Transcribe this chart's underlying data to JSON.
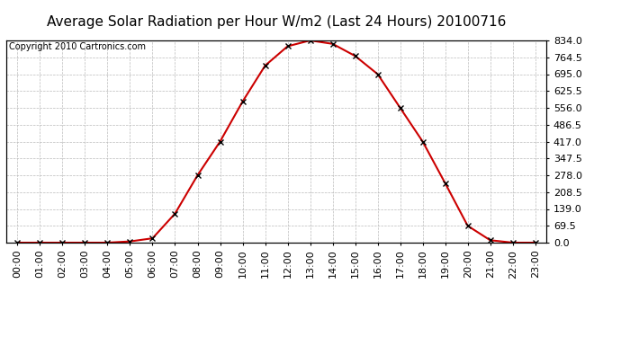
{
  "title": "Average Solar Radiation per Hour W/m2 (Last 24 Hours) 20100716",
  "copyright": "Copyright 2010 Cartronics.com",
  "hours": [
    "00:00",
    "01:00",
    "02:00",
    "03:00",
    "04:00",
    "05:00",
    "06:00",
    "07:00",
    "08:00",
    "09:00",
    "10:00",
    "11:00",
    "12:00",
    "13:00",
    "14:00",
    "15:00",
    "16:00",
    "17:00",
    "18:00",
    "19:00",
    "20:00",
    "21:00",
    "22:00",
    "23:00"
  ],
  "values": [
    0.0,
    0.0,
    0.0,
    0.0,
    0.0,
    5.0,
    18.0,
    120.0,
    278.0,
    417.0,
    582.0,
    730.0,
    810.0,
    834.0,
    820.0,
    770.0,
    695.0,
    556.0,
    417.0,
    245.0,
    69.5,
    10.0,
    0.0,
    0.0
  ],
  "line_color": "#cc0000",
  "marker": "x",
  "marker_color": "#000000",
  "bg_color": "#ffffff",
  "grid_color": "#bbbbbb",
  "yticks": [
    0.0,
    69.5,
    139.0,
    208.5,
    278.0,
    347.5,
    417.0,
    486.5,
    556.0,
    625.5,
    695.0,
    764.5,
    834.0
  ],
  "ymax": 834.0,
  "ymin": 0.0,
  "title_fontsize": 11,
  "copyright_fontsize": 7,
  "tick_fontsize": 8
}
